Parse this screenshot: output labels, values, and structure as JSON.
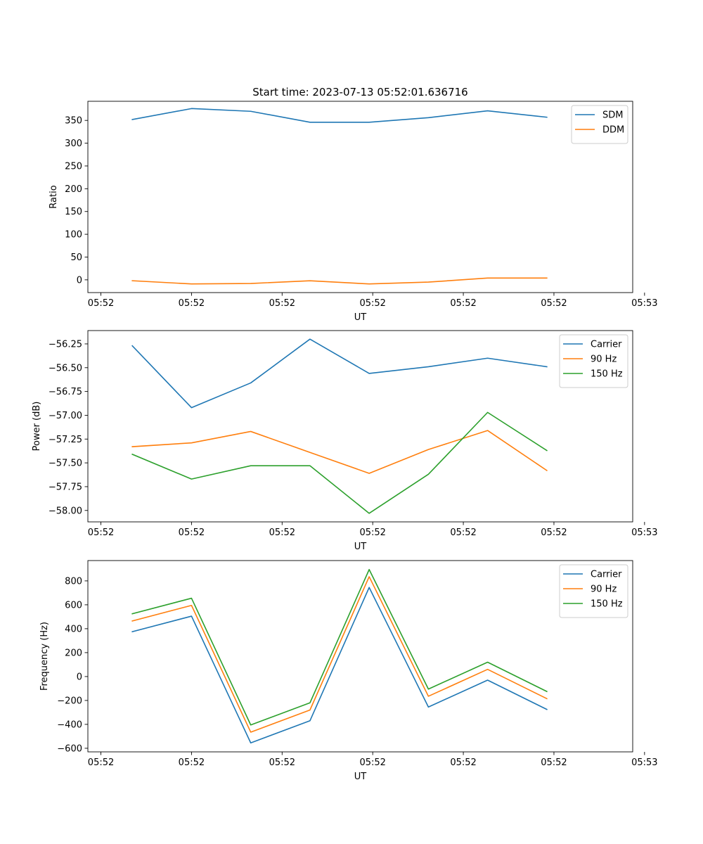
{
  "figure": {
    "title": "Start time: 2023-07-13 05:52:01.636716"
  },
  "colors": {
    "blue": "#1f77b4",
    "orange": "#ff7f0e",
    "green": "#2ca02c"
  },
  "chart_data": [
    {
      "type": "line",
      "title": "Start time: 2023-07-13 05:52:01.636716",
      "xlabel": "UT",
      "ylabel": "Ratio",
      "x_sample_index": [
        0,
        1,
        2,
        3,
        4,
        5,
        6,
        7
      ],
      "xlim": [
        -0.75,
        8.45
      ],
      "x_ticks": [
        -0.53,
        1.0,
        2.53,
        4.06,
        5.59,
        7.12,
        8.65
      ],
      "x_tick_labels": [
        "05:52",
        "05:52",
        "05:52",
        "05:52",
        "05:52",
        "05:52",
        "05:53"
      ],
      "ylim": [
        -28,
        392
      ],
      "y_ticks": [
        0,
        50,
        100,
        150,
        200,
        250,
        300,
        350
      ],
      "y_tick_labels": [
        "0",
        "50",
        "100",
        "150",
        "200",
        "250",
        "300",
        "350"
      ],
      "legend_position": "top-right",
      "series": [
        {
          "name": "SDM",
          "color": "blue",
          "values": [
            352,
            376,
            370,
            346,
            346,
            356,
            371,
            357
          ]
        },
        {
          "name": "DDM",
          "color": "orange",
          "values": [
            -2,
            -9,
            -8,
            -2,
            -9,
            -5,
            4,
            4
          ]
        }
      ]
    },
    {
      "type": "line",
      "title": "",
      "xlabel": "UT",
      "ylabel": "Power (dB)",
      "x_sample_index": [
        0,
        1,
        2,
        3,
        4,
        5,
        6,
        7
      ],
      "xlim": [
        -0.75,
        8.45
      ],
      "x_ticks": [
        -0.53,
        1.0,
        2.53,
        4.06,
        5.59,
        7.12,
        8.65
      ],
      "x_tick_labels": [
        "05:52",
        "05:52",
        "05:52",
        "05:52",
        "05:52",
        "05:52",
        "05:53"
      ],
      "ylim": [
        -58.12,
        -56.11
      ],
      "y_ticks": [
        -58.0,
        -57.75,
        -57.5,
        -57.25,
        -57.0,
        -56.75,
        -56.5,
        -56.25
      ],
      "y_tick_labels": [
        "−58.00",
        "−57.75",
        "−57.50",
        "−57.25",
        "−57.00",
        "−56.75",
        "−56.50",
        "−56.25"
      ],
      "legend_position": "top-right",
      "series": [
        {
          "name": "Carrier",
          "color": "blue",
          "values": [
            -56.27,
            -56.92,
            -56.66,
            -56.2,
            -56.56,
            -56.49,
            -56.4,
            -56.49
          ]
        },
        {
          "name": "90 Hz",
          "color": "orange",
          "values": [
            -57.33,
            -57.29,
            -57.17,
            -57.39,
            -57.61,
            -57.36,
            -57.16,
            -57.58
          ]
        },
        {
          "name": "150 Hz",
          "color": "green",
          "values": [
            -57.41,
            -57.67,
            -57.53,
            -57.53,
            -58.03,
            -57.62,
            -56.97,
            -57.37
          ]
        }
      ]
    },
    {
      "type": "line",
      "title": "",
      "xlabel": "UT",
      "ylabel": "Frequency (Hz)",
      "x_sample_index": [
        0,
        1,
        2,
        3,
        4,
        5,
        6,
        7
      ],
      "xlim": [
        -0.75,
        8.45
      ],
      "x_ticks": [
        -0.53,
        1.0,
        2.53,
        4.06,
        5.59,
        7.12,
        8.65
      ],
      "x_tick_labels": [
        "05:52",
        "05:52",
        "05:52",
        "05:52",
        "05:52",
        "05:52",
        "05:53"
      ],
      "ylim": [
        -630,
        970
      ],
      "y_ticks": [
        -600,
        -400,
        -200,
        0,
        200,
        400,
        600,
        800
      ],
      "y_tick_labels": [
        "−600",
        "−400",
        "−200",
        "0",
        "200",
        "400",
        "600",
        "800"
      ],
      "legend_position": "top-right",
      "series": [
        {
          "name": "Carrier",
          "color": "blue",
          "values": [
            375,
            505,
            -555,
            -370,
            745,
            -255,
            -30,
            -275
          ]
        },
        {
          "name": "90 Hz",
          "color": "orange",
          "values": [
            465,
            595,
            -465,
            -280,
            835,
            -165,
            60,
            -185
          ]
        },
        {
          "name": "150 Hz",
          "color": "green",
          "values": [
            525,
            655,
            -405,
            -220,
            895,
            -105,
            120,
            -125
          ]
        }
      ]
    }
  ]
}
